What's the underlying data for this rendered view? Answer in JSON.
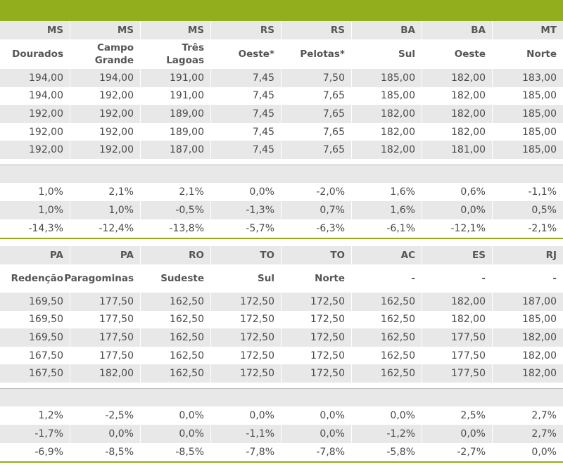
{
  "colors": {
    "accent": "#93ae1c",
    "row_grey": "#e8e8e8",
    "text": "#4a4a4a"
  },
  "block1": {
    "states": [
      "MS",
      "MS",
      "MS",
      "RS",
      "RS",
      "BA",
      "BA",
      "MT"
    ],
    "cities": [
      [
        "Dourados"
      ],
      [
        "Campo",
        "Grande"
      ],
      [
        "Três",
        "Lagoas"
      ],
      [
        "Oeste*"
      ],
      [
        "Pelotas*"
      ],
      [
        "Sul"
      ],
      [
        "Oeste"
      ],
      [
        "Norte"
      ]
    ],
    "prices": [
      [
        "194,00",
        "194,00",
        "191,00",
        "7,45",
        "7,50",
        "185,00",
        "182,00",
        "183,00"
      ],
      [
        "194,00",
        "192,00",
        "191,00",
        "7,45",
        "7,65",
        "185,00",
        "182,00",
        "185,00"
      ],
      [
        "192,00",
        "192,00",
        "189,00",
        "7,45",
        "7,65",
        "182,00",
        "182,00",
        "185,00"
      ],
      [
        "192,00",
        "192,00",
        "189,00",
        "7,45",
        "7,65",
        "182,00",
        "182,00",
        "185,00"
      ],
      [
        "192,00",
        "192,00",
        "187,00",
        "7,45",
        "7,65",
        "182,00",
        "181,00",
        "185,00"
      ]
    ],
    "changes": [
      [
        "1,0%",
        "2,1%",
        "2,1%",
        "0,0%",
        "-2,0%",
        "1,6%",
        "0,6%",
        "-1,1%"
      ],
      [
        "1,0%",
        "1,0%",
        "-0,5%",
        "-1,3%",
        "0,7%",
        "1,6%",
        "0,0%",
        "0,5%"
      ],
      [
        "-14,3%",
        "-12,4%",
        "-13,8%",
        "-5,7%",
        "-6,3%",
        "-6,1%",
        "-12,1%",
        "-2,1%"
      ]
    ]
  },
  "block2": {
    "states": [
      "PA",
      "PA",
      "RO",
      "TO",
      "TO",
      "AC",
      "ES",
      "RJ"
    ],
    "cities": [
      [
        "Redenção"
      ],
      [
        "Paragominas"
      ],
      [
        "Sudeste"
      ],
      [
        "Sul"
      ],
      [
        "Norte"
      ],
      [
        "-"
      ],
      [
        "-"
      ],
      [
        "-"
      ]
    ],
    "prices": [
      [
        "169,50",
        "177,50",
        "162,50",
        "172,50",
        "172,50",
        "162,50",
        "182,00",
        "187,00"
      ],
      [
        "169,50",
        "177,50",
        "162,50",
        "172,50",
        "172,50",
        "162,50",
        "182,00",
        "185,00"
      ],
      [
        "169,50",
        "177,50",
        "162,50",
        "172,50",
        "172,50",
        "162,50",
        "177,50",
        "182,00"
      ],
      [
        "167,50",
        "177,50",
        "162,50",
        "172,50",
        "172,50",
        "162,50",
        "177,50",
        "182,00"
      ],
      [
        "167,50",
        "182,00",
        "162,50",
        "172,50",
        "172,50",
        "162,50",
        "177,50",
        "182,00"
      ]
    ],
    "changes": [
      [
        "1,2%",
        "-2,5%",
        "0,0%",
        "0,0%",
        "0,0%",
        "0,0%",
        "2,5%",
        "2,7%"
      ],
      [
        "-1,7%",
        "0,0%",
        "0,0%",
        "-1,1%",
        "0,0%",
        "-1,2%",
        "0,0%",
        "2,7%"
      ],
      [
        "-6,9%",
        "-8,5%",
        "-8,5%",
        "-7,8%",
        "-7,8%",
        "-5,8%",
        "-2,7%",
        "0,0%"
      ]
    ]
  }
}
